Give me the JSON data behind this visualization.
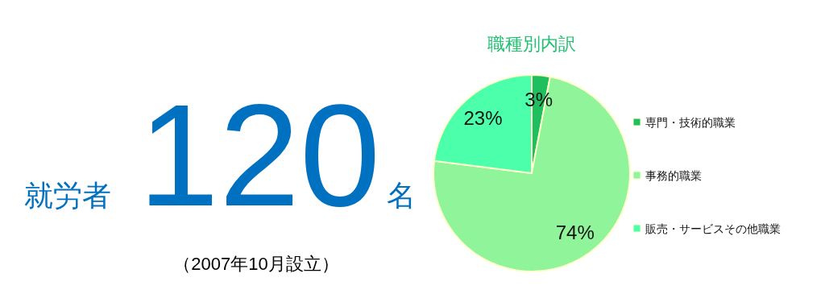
{
  "chart_data": [
    {
      "type": "other",
      "annotations": [
        "就労者",
        "120",
        "名",
        "（2007年10月設立）"
      ]
    },
    {
      "type": "pie",
      "title": "職種別内訳",
      "categories": [
        "専門・技術的職業",
        "事務的職業",
        "販売・サービスその他職業"
      ],
      "values": [
        3,
        74,
        23
      ],
      "colors": [
        "#1fbf5f",
        "#90f49a",
        "#4cffaa"
      ],
      "value_labels": [
        "3%",
        "74%",
        "23%"
      ],
      "legend": "right"
    }
  ]
}
